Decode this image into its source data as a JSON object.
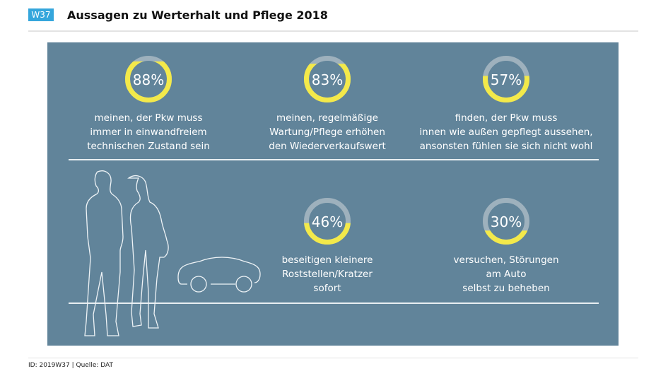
{
  "header": {
    "badge": "W37",
    "title": "Aussagen zu Werterhalt und Pflege 2018"
  },
  "colors": {
    "panel": "#61849a",
    "ring_fill": "#f3e94a",
    "ring_empty": "#9eb1bd",
    "badge": "#35a6dc"
  },
  "stats": [
    {
      "percent": 88,
      "label": "88%",
      "lines": [
        "meinen, der Pkw muss",
        "immer in einwandfreiem",
        "technischen Zustand sein"
      ]
    },
    {
      "percent": 83,
      "label": "83%",
      "lines": [
        "meinen, regelmäßige",
        "Wartung/Pflege erhöhen",
        "den Wiederverkaufswert"
      ]
    },
    {
      "percent": 57,
      "label": "57%",
      "lines": [
        "finden, der Pkw muss",
        "innen wie außen gepflegt aussehen,",
        "ansonsten fühlen sie sich nicht wohl"
      ]
    },
    {
      "percent": 46,
      "label": "46%",
      "lines": [
        "beseitigen kleinere",
        "Roststellen/Kratzer",
        "sofort"
      ]
    },
    {
      "percent": 30,
      "label": "30%",
      "lines": [
        "versuchen, Störungen",
        "am Auto",
        "selbst zu beheben"
      ]
    }
  ],
  "illustration": {
    "icon": "couple-and-car-outline"
  },
  "footer": {
    "text": "ID: 2019W37 | Quelle: DAT"
  }
}
